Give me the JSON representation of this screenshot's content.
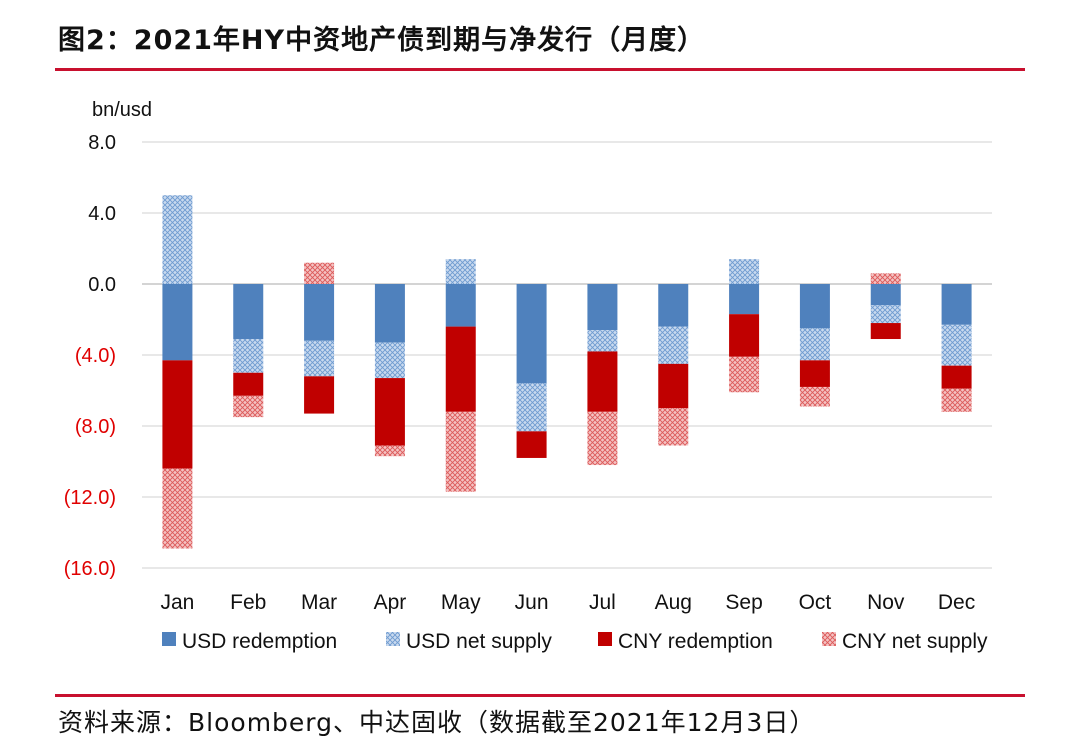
{
  "header": {
    "title": "图2：2021年HY中资地产债到期与净发行（月度）"
  },
  "footer": {
    "source": "资料来源：Bloomberg、中达固收（数据截至2021年12月3日）"
  },
  "colors": {
    "usd_redemption": "#4f81bd",
    "usd_net_supply": "#9dbbe0",
    "cny_redemption": "#c00000",
    "cny_net_supply": "#e47b7b",
    "negative_label": "#e00000",
    "rule": "#c8102e"
  },
  "chart_data": {
    "type": "bar",
    "stacked": true,
    "unit_label": "bn/usd",
    "ylim": [
      -16,
      8
    ],
    "yticks": [
      {
        "value": 8,
        "label": "8.0"
      },
      {
        "value": 4,
        "label": "4.0"
      },
      {
        "value": 0,
        "label": "0.0"
      },
      {
        "value": -4,
        "label": "(4.0)"
      },
      {
        "value": -8,
        "label": "(8.0)"
      },
      {
        "value": -12,
        "label": "(12.0)"
      },
      {
        "value": -16,
        "label": "(16.0)"
      }
    ],
    "grid": true,
    "legend_position": "bottom",
    "categories": [
      "Jan",
      "Feb",
      "Mar",
      "Apr",
      "May",
      "Jun",
      "Jul",
      "Aug",
      "Sep",
      "Oct",
      "Nov",
      "Dec"
    ],
    "series": [
      {
        "name": "USD redemption",
        "values": [
          -4.3,
          -3.1,
          -3.2,
          -3.3,
          -2.4,
          -5.6,
          -2.6,
          -2.4,
          -1.7,
          -2.5,
          -1.2,
          -2.3
        ]
      },
      {
        "name": "USD net supply",
        "values": [
          5.0,
          -1.9,
          -2.0,
          -2.0,
          1.4,
          -2.7,
          -1.2,
          -2.1,
          1.4,
          -1.8,
          -1.0,
          -2.3
        ]
      },
      {
        "name": "CNY redemption",
        "values": [
          -6.1,
          -1.3,
          -2.1,
          -3.8,
          -4.8,
          -1.5,
          -3.4,
          -2.5,
          -2.4,
          -1.5,
          -0.9,
          -1.3
        ]
      },
      {
        "name": "CNY net supply",
        "values": [
          -4.5,
          -1.2,
          1.2,
          -0.6,
          -4.5,
          0,
          -3.0,
          -2.1,
          -2.0,
          -1.1,
          0.6,
          -1.3
        ]
      }
    ]
  }
}
